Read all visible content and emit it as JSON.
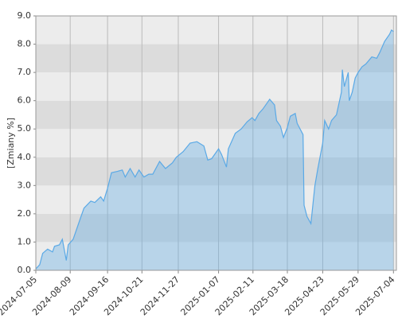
{
  "chart_data": {
    "type": "area",
    "y_label": "[Zmiany %]",
    "x": [
      "2024-07-05",
      "2024-07-09",
      "2024-07-12",
      "2024-07-17",
      "2024-07-22",
      "2024-07-24",
      "2024-07-29",
      "2024-08-01",
      "2024-08-05",
      "2024-08-07",
      "2024-08-12",
      "2024-08-19",
      "2024-08-23",
      "2024-08-30",
      "2024-09-03",
      "2024-09-09",
      "2024-09-12",
      "2024-09-16",
      "2024-09-20",
      "2024-09-26",
      "2024-10-01",
      "2024-10-04",
      "2024-10-09",
      "2024-10-14",
      "2024-10-18",
      "2024-10-23",
      "2024-10-28",
      "2024-11-01",
      "2024-11-08",
      "2024-11-14",
      "2024-11-21",
      "2024-11-25",
      "2024-12-02",
      "2024-12-09",
      "2024-12-16",
      "2024-12-23",
      "2024-12-27",
      "2024-12-31",
      "2025-01-07",
      "2025-01-10",
      "2025-01-15",
      "2025-01-17",
      "2025-01-24",
      "2025-01-30",
      "2025-02-05",
      "2025-02-10",
      "2025-02-13",
      "2025-02-17",
      "2025-02-21",
      "2025-02-25",
      "2025-02-28",
      "2025-03-05",
      "2025-03-07",
      "2025-03-11",
      "2025-03-14",
      "2025-03-18",
      "2025-03-21",
      "2025-03-26",
      "2025-03-28",
      "2025-04-03",
      "2025-04-04",
      "2025-04-07",
      "2025-04-11",
      "2025-04-15",
      "2025-04-18",
      "2025-04-23",
      "2025-04-25",
      "2025-04-29",
      "2025-05-02",
      "2025-05-07",
      "2025-05-12",
      "2025-05-13",
      "2025-05-15",
      "2025-05-19",
      "2025-05-20",
      "2025-05-23",
      "2025-05-26",
      "2025-05-29",
      "2025-06-02",
      "2025-06-06",
      "2025-06-12",
      "2025-06-17",
      "2025-06-20",
      "2025-06-25",
      "2025-06-30",
      "2025-07-02",
      "2025-07-04"
    ],
    "series": [
      {
        "color": "#5aa9e6",
        "values": [
          0.05,
          0.2,
          0.6,
          0.75,
          0.65,
          0.85,
          0.9,
          1.1,
          0.35,
          0.9,
          1.1,
          1.8,
          2.2,
          2.45,
          2.4,
          2.6,
          2.45,
          2.9,
          3.45,
          3.5,
          3.55,
          3.3,
          3.6,
          3.3,
          3.55,
          3.3,
          3.4,
          3.4,
          3.85,
          3.6,
          3.8,
          4.0,
          4.2,
          4.5,
          4.55,
          4.4,
          3.9,
          3.95,
          4.3,
          4.1,
          3.65,
          4.3,
          4.85,
          5.0,
          5.25,
          5.4,
          5.3,
          5.55,
          5.7,
          5.9,
          6.05,
          5.85,
          5.3,
          5.1,
          4.7,
          5.05,
          5.45,
          5.55,
          5.2,
          4.8,
          2.3,
          1.9,
          1.65,
          3.0,
          3.6,
          4.5,
          5.3,
          5.0,
          5.3,
          5.5,
          6.3,
          7.1,
          6.5,
          7.0,
          6.0,
          6.3,
          6.8,
          7.0,
          7.2,
          7.3,
          7.55,
          7.5,
          7.7,
          8.1,
          8.35,
          8.5,
          8.45
        ]
      }
    ],
    "xlim": [
      "2024-07-05",
      "2025-07-07"
    ],
    "xticks": [
      "2024-07-05",
      "2024-08-09",
      "2024-09-16",
      "2024-10-21",
      "2024-11-27",
      "2025-01-07",
      "2025-02-11",
      "2025-03-18",
      "2025-04-23",
      "2025-05-29",
      "2025-07-04"
    ],
    "ylim": [
      0,
      9
    ],
    "yticks": [
      {
        "value": 0,
        "label": "0.0"
      },
      {
        "value": 1,
        "label": "1.0"
      },
      {
        "value": 2,
        "label": "2.0"
      },
      {
        "value": 3,
        "label": "3.0"
      },
      {
        "value": 4,
        "label": "4.0"
      },
      {
        "value": 5,
        "label": "5.0"
      },
      {
        "value": 6,
        "label": "6.0"
      },
      {
        "value": 7,
        "label": "7.0"
      },
      {
        "value": 8,
        "label": "8.0"
      },
      {
        "value": 9,
        "label": "9.0"
      }
    ],
    "grid": true
  }
}
